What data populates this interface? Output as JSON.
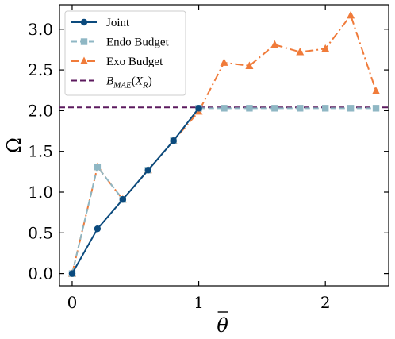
{
  "chart_data": {
    "type": "line",
    "xlabel": "θ",
    "ylabel": "Ω",
    "xlim": [
      -0.1,
      2.5
    ],
    "ylim": [
      -0.15,
      3.3
    ],
    "xticks": [
      0,
      1,
      2
    ],
    "yticks": [
      0.0,
      0.5,
      1.0,
      1.5,
      2.0,
      2.5,
      3.0
    ],
    "xtick_labels": [
      "0",
      "1",
      "2"
    ],
    "ytick_labels": [
      "0.0",
      "0.5",
      "1.0",
      "1.5",
      "2.0",
      "2.5",
      "3.0"
    ],
    "grid": false,
    "legend_position": "top-left",
    "series": [
      {
        "name": "Joint",
        "color": "#0b4a7d",
        "style": "solid",
        "marker": "circle",
        "x": [
          0,
          0.2,
          0.4,
          0.6,
          0.8,
          1.0
        ],
        "y": [
          0.0,
          0.55,
          0.91,
          1.27,
          1.63,
          2.03
        ]
      },
      {
        "name": "Endo Budget",
        "color": "#8fb7c4",
        "style": "dashed",
        "marker": "square",
        "x": [
          0,
          0.2,
          0.4,
          0.6,
          0.8,
          1.0,
          1.2,
          1.4,
          1.6,
          1.8,
          2.0,
          2.2,
          2.4
        ],
        "y": [
          0.0,
          1.31,
          0.91,
          1.27,
          1.63,
          2.03,
          2.03,
          2.03,
          2.03,
          2.03,
          2.03,
          2.03,
          2.03
        ]
      },
      {
        "name": "Exo Budget",
        "color": "#f07b3a",
        "style": "dashdot",
        "marker": "triangle",
        "x": [
          0,
          0.2,
          0.4,
          0.6,
          0.8,
          1.0,
          1.2,
          1.4,
          1.6,
          1.8,
          2.0,
          2.2,
          2.4
        ],
        "y": [
          0.0,
          1.31,
          0.91,
          1.27,
          1.63,
          1.99,
          2.59,
          2.55,
          2.81,
          2.72,
          2.76,
          3.17,
          2.24
        ]
      }
    ],
    "reference_line": {
      "name": "B_MAE(X_R)",
      "color": "#5c1a5e",
      "style": "dashed",
      "y": 2.04
    }
  }
}
